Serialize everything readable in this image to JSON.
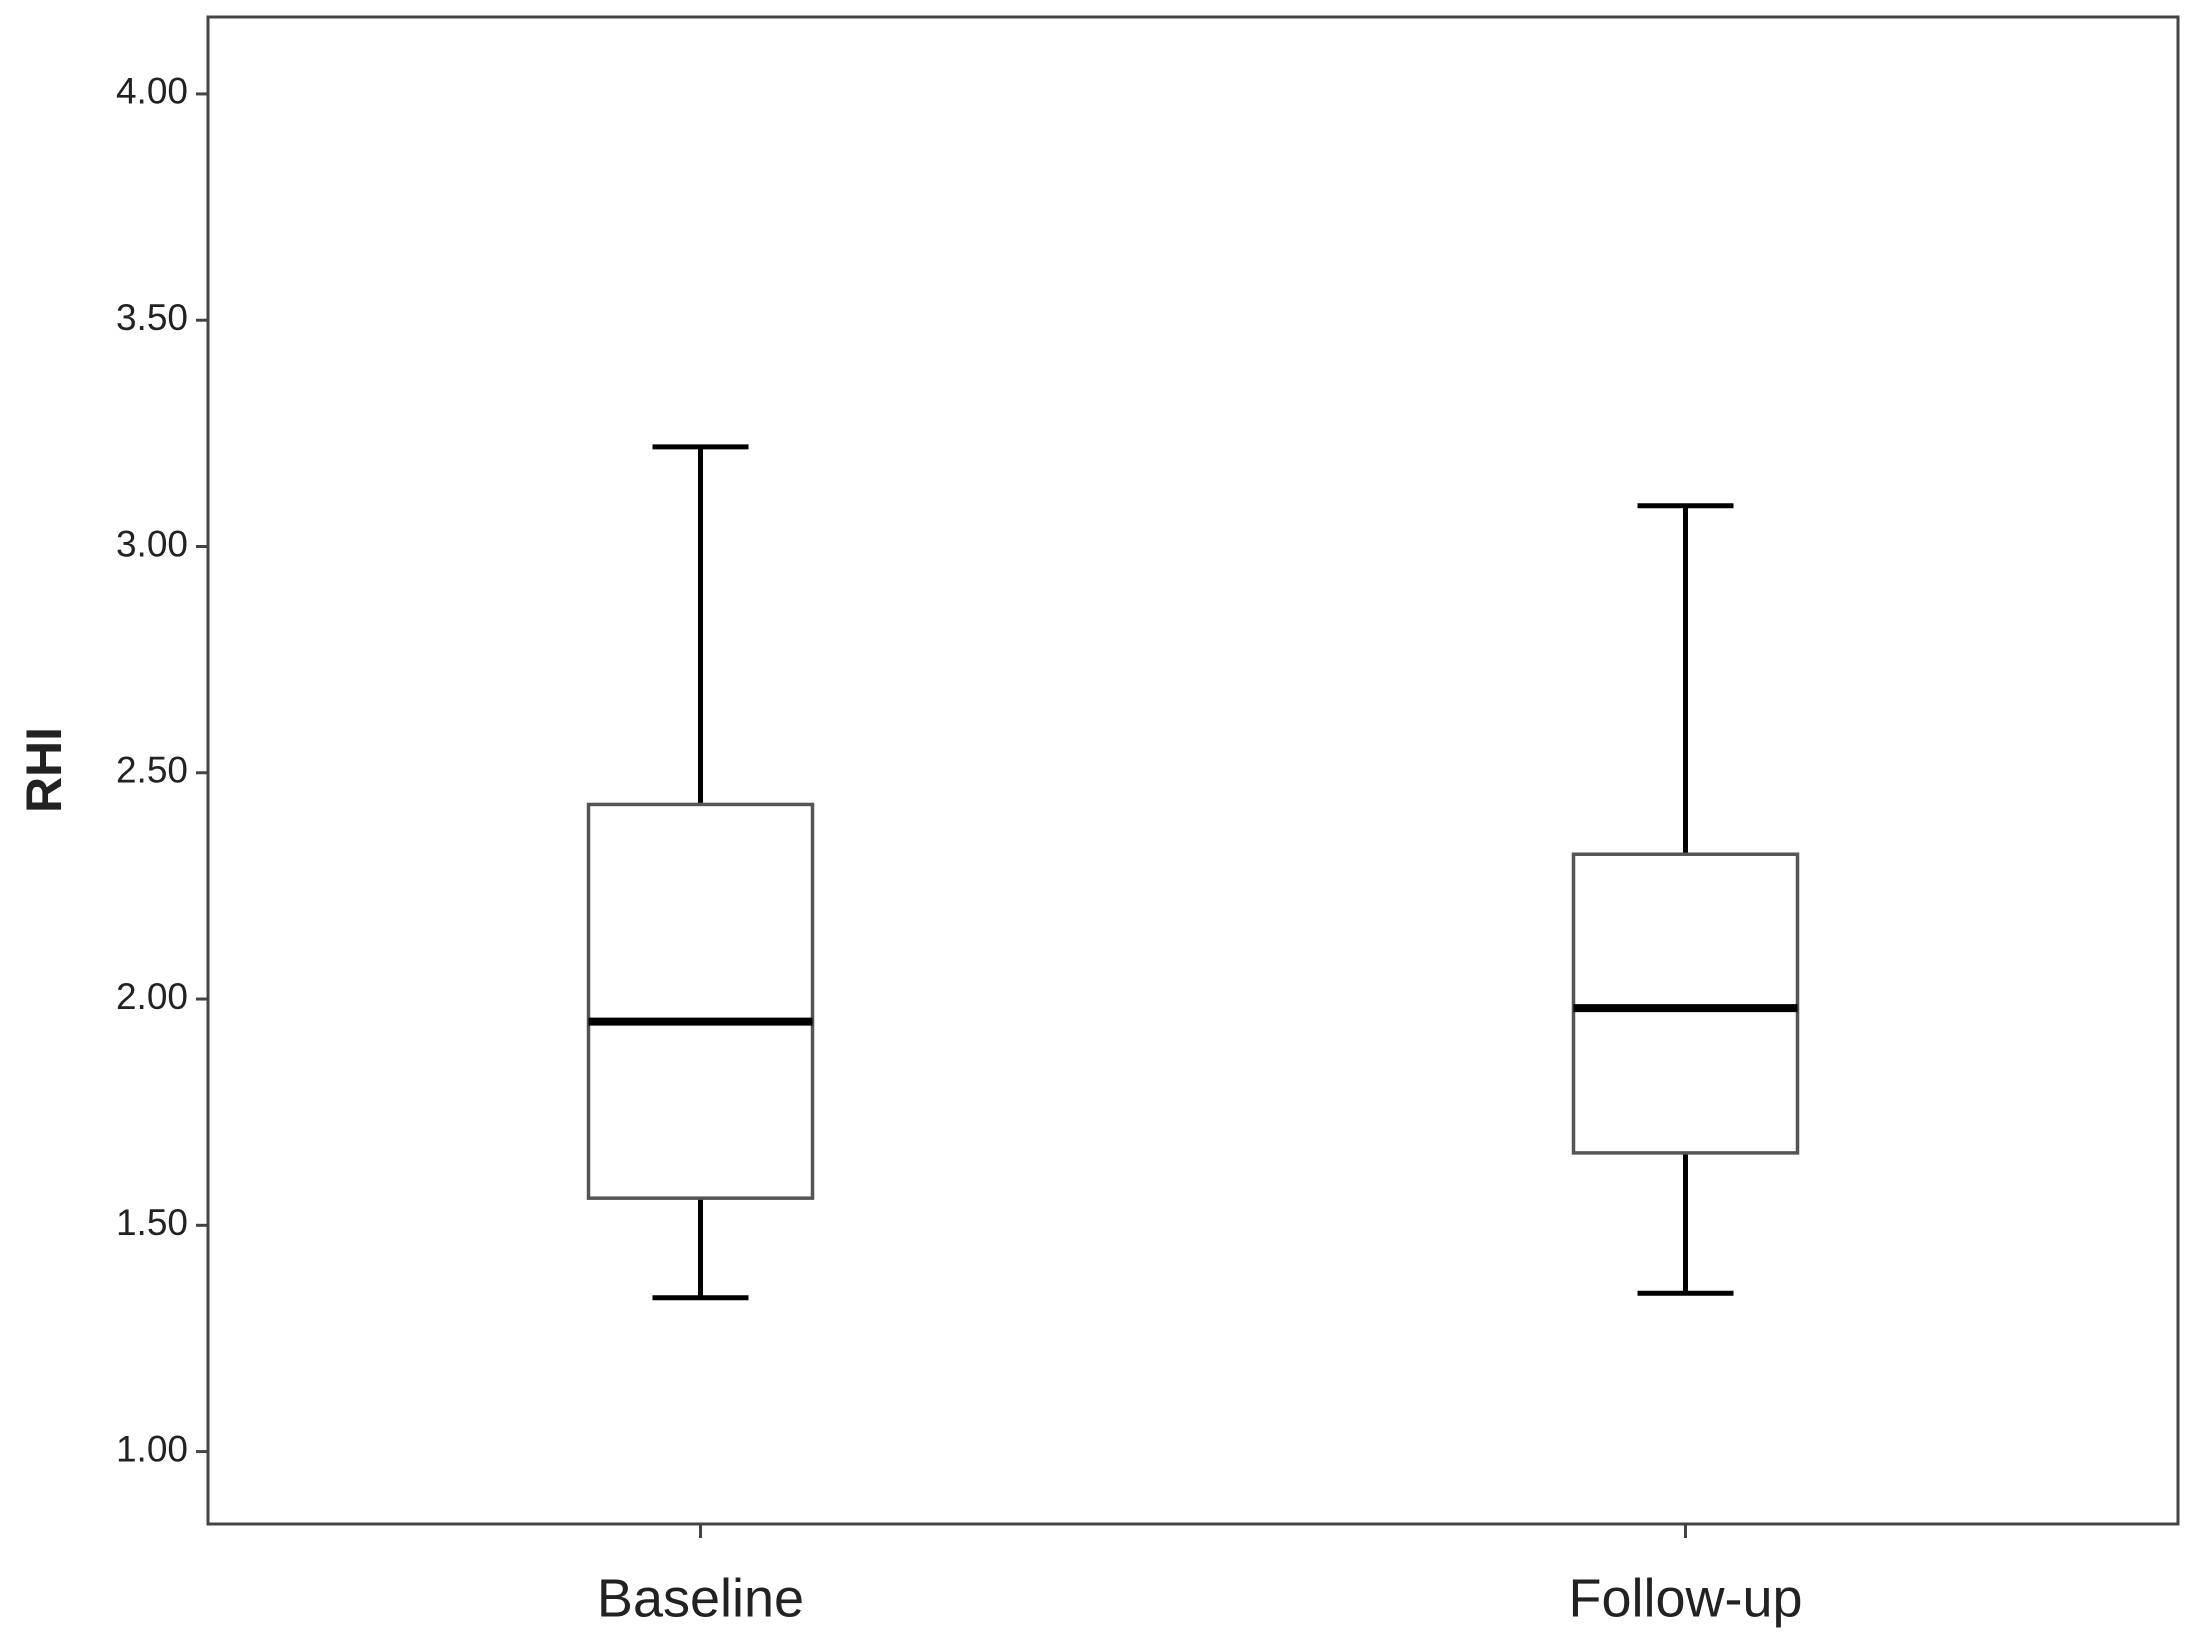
{
  "chart_data": {
    "type": "box",
    "ylabel": "RHI",
    "categories": [
      "Baseline",
      "Follow-up"
    ],
    "boxes": [
      {
        "min": 1.34,
        "q1": 1.56,
        "median": 1.95,
        "q3": 2.43,
        "max": 3.22
      },
      {
        "min": 1.35,
        "q1": 1.66,
        "median": 1.98,
        "q3": 2.32,
        "max": 3.09
      }
    ],
    "color": "#ffffff",
    "line_color": "#000000",
    "ylim": [
      0.84,
      4.17
    ],
    "yticks": [
      {
        "value": 1,
        "label": "1.00"
      },
      {
        "value": 1.5,
        "label": "1.50"
      },
      {
        "value": 2,
        "label": "2.00"
      },
      {
        "value": 2.5,
        "label": "2.50"
      },
      {
        "value": 3,
        "label": "3.00"
      },
      {
        "value": 3.5,
        "label": "3.50"
      },
      {
        "value": 4,
        "label": "4.00"
      }
    ],
    "grid": false
  }
}
